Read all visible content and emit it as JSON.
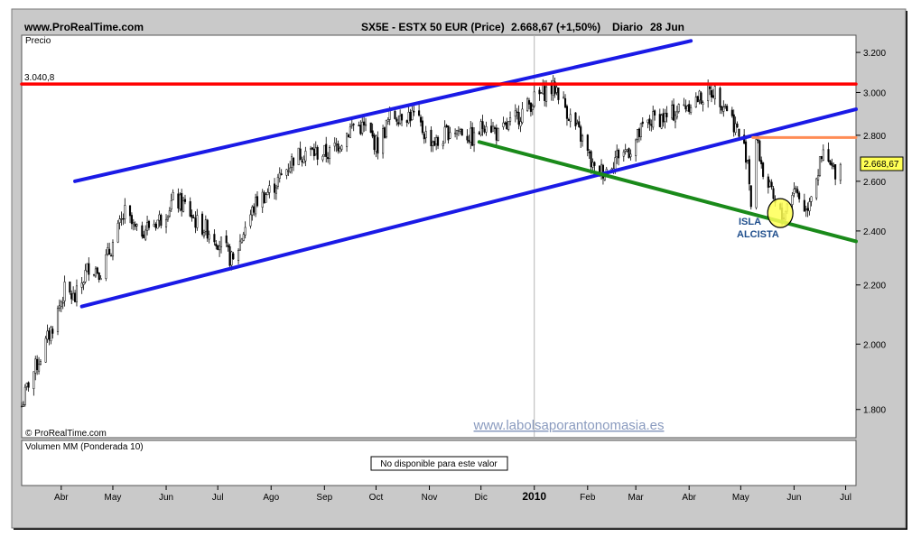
{
  "header": {
    "site": "www.ProRealTime.com",
    "title": "SX5E - ESTX 50 EUR (Price)",
    "last_price": "2.668,67 (+1,50%)",
    "period": "Diario",
    "date": "28 Jun"
  },
  "price_panel": {
    "label": "Precio",
    "copyright": "© ProRealTime.com",
    "watermark": "www.labolsaporantonomasia.es",
    "last_value_tag": "2.668,67",
    "red_level_label": "3.040,8",
    "annotation_line1": "ISLA",
    "annotation_line2": "ALCISTA"
  },
  "volume_panel": {
    "label": "Volumen MM (Ponderada 10)",
    "message": "No disponible para este valor"
  },
  "colors": {
    "frame_bg": "#c9c9c9",
    "panel_bg": "#ffffff",
    "candle": "#000000",
    "channel": "#1a1ae6",
    "support": "#1a8a1a",
    "resistance": "#ff0000",
    "short_resistance": "#ff8c55",
    "highlight": "#ffff55",
    "annotation_text": "#1f4e8c",
    "watermark": "#8a9bbf"
  },
  "chart_data": {
    "type": "candlestick",
    "instrument": "SX5E - ESTX 50 EUR",
    "y_axis": {
      "scale": "log",
      "ticks": [
        1800,
        2000,
        2200,
        2400,
        2600,
        2800,
        3000,
        3200
      ],
      "tick_labels": [
        "1.800",
        "2.000",
        "2.200",
        "2.400",
        "2.600",
        "2.800",
        "3.000",
        "3.200"
      ],
      "ylim": [
        1720,
        3290
      ]
    },
    "x_axis": {
      "start": "2009-03-09",
      "end": "2010-07-07",
      "ticks": [
        {
          "date": "2009-04-01",
          "label": "Abr",
          "bold": false
        },
        {
          "date": "2009-05-01",
          "label": "May",
          "bold": false
        },
        {
          "date": "2009-06-01",
          "label": "Jun",
          "bold": false
        },
        {
          "date": "2009-07-01",
          "label": "Jul",
          "bold": false
        },
        {
          "date": "2009-08-01",
          "label": "Ago",
          "bold": false
        },
        {
          "date": "2009-09-01",
          "label": "Sep",
          "bold": false
        },
        {
          "date": "2009-10-01",
          "label": "Oct",
          "bold": false
        },
        {
          "date": "2009-11-01",
          "label": "Nov",
          "bold": false
        },
        {
          "date": "2009-12-01",
          "label": "Dic",
          "bold": false
        },
        {
          "date": "2010-01-01",
          "label": "2010",
          "bold": true
        },
        {
          "date": "2010-02-01",
          "label": "Feb",
          "bold": false
        },
        {
          "date": "2010-03-01",
          "label": "Mar",
          "bold": false
        },
        {
          "date": "2010-04-01",
          "label": "Abr",
          "bold": false
        },
        {
          "date": "2010-05-01",
          "label": "May",
          "bold": false
        },
        {
          "date": "2010-06-01",
          "label": "Jun",
          "bold": false
        },
        {
          "date": "2010-07-01",
          "label": "Jul",
          "bold": false
        }
      ]
    },
    "close_path": [
      [
        "2009-03-09",
        1810
      ],
      [
        "2009-03-13",
        1880
      ],
      [
        "2009-03-20",
        1960
      ],
      [
        "2009-03-27",
        2060
      ],
      [
        "2009-04-03",
        2180
      ],
      [
        "2009-04-09",
        2150
      ],
      [
        "2009-04-17",
        2270
      ],
      [
        "2009-04-24",
        2250
      ],
      [
        "2009-05-01",
        2350
      ],
      [
        "2009-05-08",
        2470
      ],
      [
        "2009-05-15",
        2390
      ],
      [
        "2009-05-22",
        2420
      ],
      [
        "2009-05-29",
        2450
      ],
      [
        "2009-06-05",
        2520
      ],
      [
        "2009-06-12",
        2500
      ],
      [
        "2009-06-19",
        2430
      ],
      [
        "2009-06-26",
        2400
      ],
      [
        "2009-07-03",
        2350
      ],
      [
        "2009-07-10",
        2280
      ],
      [
        "2009-07-17",
        2420
      ],
      [
        "2009-07-24",
        2520
      ],
      [
        "2009-07-31",
        2560
      ],
      [
        "2009-08-07",
        2620
      ],
      [
        "2009-08-14",
        2700
      ],
      [
        "2009-08-21",
        2730
      ],
      [
        "2009-08-28",
        2720
      ],
      [
        "2009-09-04",
        2720
      ],
      [
        "2009-09-11",
        2780
      ],
      [
        "2009-09-18",
        2850
      ],
      [
        "2009-09-25",
        2830
      ],
      [
        "2009-10-02",
        2750
      ],
      [
        "2009-10-09",
        2880
      ],
      [
        "2009-10-16",
        2900
      ],
      [
        "2009-10-23",
        2890
      ],
      [
        "2009-10-30",
        2800
      ],
      [
        "2009-11-06",
        2760
      ],
      [
        "2009-11-13",
        2830
      ],
      [
        "2009-11-20",
        2820
      ],
      [
        "2009-11-27",
        2780
      ],
      [
        "2009-12-04",
        2870
      ],
      [
        "2009-12-11",
        2800
      ],
      [
        "2009-12-18",
        2850
      ],
      [
        "2009-12-31",
        2960
      ],
      [
        "2010-01-08",
        3010
      ],
      [
        "2010-01-14",
        3020
      ],
      [
        "2010-01-22",
        2880
      ],
      [
        "2010-01-29",
        2780
      ],
      [
        "2010-02-05",
        2640
      ],
      [
        "2010-02-12",
        2650
      ],
      [
        "2010-02-19",
        2720
      ],
      [
        "2010-02-26",
        2740
      ],
      [
        "2010-03-05",
        2830
      ],
      [
        "2010-03-12",
        2880
      ],
      [
        "2010-03-19",
        2880
      ],
      [
        "2010-03-26",
        2920
      ],
      [
        "2010-04-01",
        2950
      ],
      [
        "2010-04-09",
        2980
      ],
      [
        "2010-04-15",
        3010
      ],
      [
        "2010-04-23",
        2930
      ],
      [
        "2010-04-29",
        2820
      ],
      [
        "2010-05-05",
        2700
      ],
      [
        "2010-05-07",
        2510
      ],
      [
        "2010-05-10",
        2780
      ],
      [
        "2010-05-14",
        2640
      ],
      [
        "2010-05-21",
        2500
      ],
      [
        "2010-05-25",
        2450
      ],
      [
        "2010-06-01",
        2580
      ],
      [
        "2010-06-08",
        2480
      ],
      [
        "2010-06-11",
        2560
      ],
      [
        "2010-06-18",
        2710
      ],
      [
        "2010-06-24",
        2640
      ],
      [
        "2010-06-28",
        2669
      ]
    ],
    "trend_lines": [
      {
        "name": "channel-upper",
        "color": "blue",
        "from": [
          "2009-04-09",
          2600
        ],
        "to": [
          "2010-04-02",
          3260
        ]
      },
      {
        "name": "channel-lower",
        "color": "blue",
        "from": [
          "2009-04-13",
          2125
        ],
        "to": [
          "2010-07-07",
          2920
        ]
      },
      {
        "name": "support-green",
        "color": "green",
        "from": [
          "2009-11-30",
          2770
        ],
        "to": [
          "2010-07-07",
          2360
        ]
      },
      {
        "name": "resistance-red",
        "color": "red",
        "from": [
          "2009-03-09",
          3040.8
        ],
        "to": [
          "2010-07-07",
          3040.8
        ]
      },
      {
        "name": "resistance-orange",
        "color": "orange",
        "from": [
          "2010-05-08",
          2790
        ],
        "to": [
          "2010-07-07",
          2790
        ]
      }
    ],
    "annotations": [
      {
        "type": "circle",
        "date": "2010-05-24",
        "value": 2470,
        "text": "ISLA ALCISTA"
      }
    ],
    "last_value": 2668.67,
    "volume": "No disponible para este valor"
  }
}
